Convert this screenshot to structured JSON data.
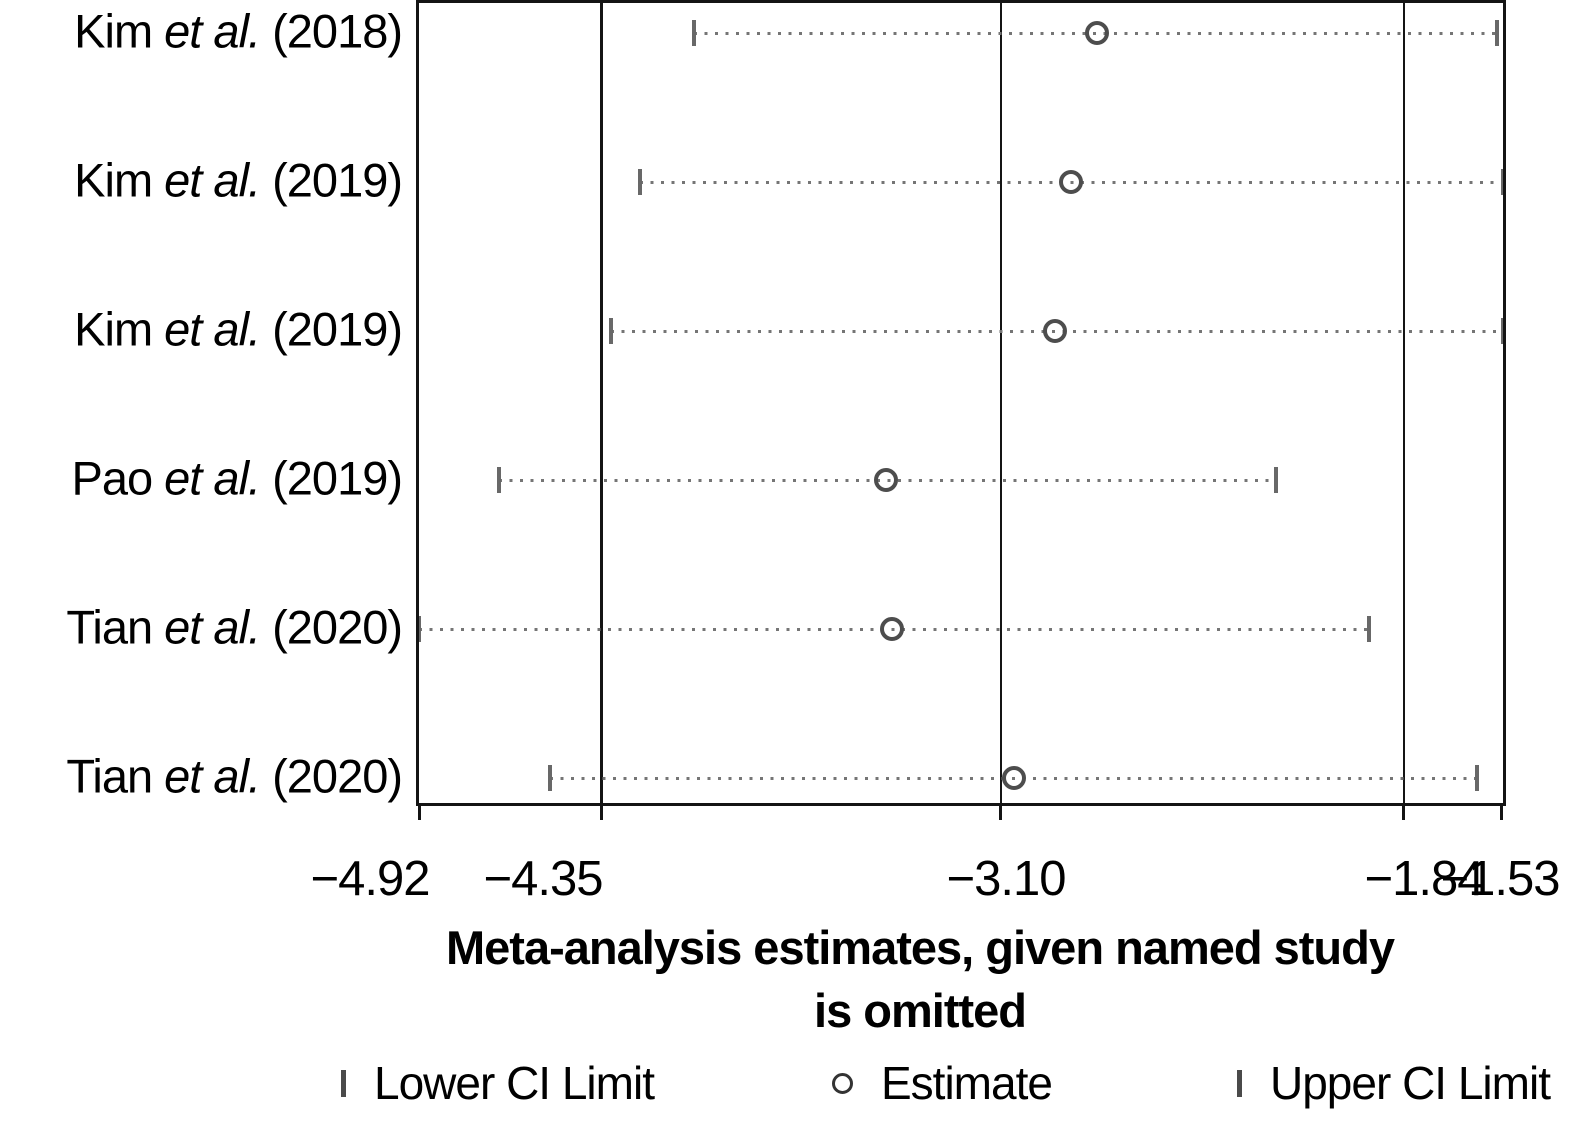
{
  "chart_data": {
    "type": "scatter",
    "variant": "leave-one-out-sensitivity-forest",
    "title": "Meta-analysis estimates, given named study is omitted",
    "title_lines": [
      "Meta-analysis estimates, given named study",
      "is omitted"
    ],
    "x_axis": {
      "ticks": [
        -4.92,
        -4.35,
        -3.1,
        -1.84,
        -1.53
      ],
      "tick_labels": [
        "−4.92",
        "−4.35",
        "−3.10",
        "−1.84",
        "−1.53"
      ],
      "min": -4.92,
      "max": -1.53,
      "grid": false
    },
    "reference_lines": [
      -4.35,
      -3.1,
      -1.84
    ],
    "studies": [
      {
        "author": "Kim",
        "etal": "et al.",
        "year": "(2018)",
        "lower": -4.06,
        "estimate": -2.8,
        "upper": -1.55
      },
      {
        "author": "Kim",
        "etal": "et al.",
        "year": "(2019)",
        "lower": -4.23,
        "estimate": -2.88,
        "upper": -1.53
      },
      {
        "author": "Kim",
        "etal": "et al.",
        "year": "(2019)",
        "lower": -4.32,
        "estimate": -2.93,
        "upper": -1.53
      },
      {
        "author": "Pao",
        "etal": "et al.",
        "year": "(2019)",
        "lower": -4.67,
        "estimate": -3.46,
        "upper": -2.24
      },
      {
        "author": "Tian",
        "etal": "et al.",
        "year": "(2020)",
        "lower": -4.92,
        "estimate": -3.44,
        "upper": -1.95
      },
      {
        "author": "Tian",
        "etal": "et al.",
        "year": "(2020)",
        "lower": -4.51,
        "estimate": -3.06,
        "upper": -1.61
      }
    ],
    "legend": {
      "position": "bottom",
      "items": [
        {
          "marker": "tick",
          "label": "Lower CI Limit"
        },
        {
          "marker": "circle",
          "label": "Estimate"
        },
        {
          "marker": "tick",
          "label": "Upper CI Limit"
        }
      ]
    },
    "colors": {
      "frame": "#141414",
      "ci_dots": "#757575",
      "ci_ticks": "#686868",
      "estimate_ring": "#4d4d4d",
      "text": "#000000",
      "background": "#ffffff"
    }
  }
}
